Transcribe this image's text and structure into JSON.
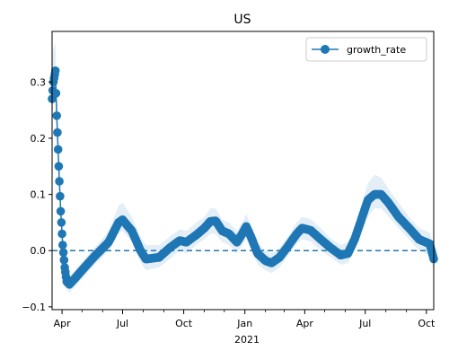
{
  "chart_data": {
    "type": "line",
    "title": "US",
    "xlabel": "",
    "ylabel": "",
    "x_axis_secondary_label": "2021",
    "xlim": [
      "2020-03-17",
      "2021-10-12"
    ],
    "ylim": [
      -0.105,
      0.39
    ],
    "legend": {
      "placement": "top-right",
      "entries": [
        "growth_rate"
      ]
    },
    "grid": false,
    "reference_line": {
      "y": 0.0,
      "style": "dashed"
    },
    "y_ticks": [
      {
        "value": -0.1,
        "label": "−0.1"
      },
      {
        "value": 0.0,
        "label": "0.0"
      },
      {
        "value": 0.1,
        "label": "0.1"
      },
      {
        "value": 0.2,
        "label": "0.2"
      },
      {
        "value": 0.3,
        "label": "0.3"
      }
    ],
    "x_ticks_major": [
      {
        "date": "2020-04-01",
        "label": "Apr"
      },
      {
        "date": "2020-07-01",
        "label": "Jul"
      },
      {
        "date": "2020-10-01",
        "label": "Oct"
      },
      {
        "date": "2021-01-01",
        "label": "Jan"
      },
      {
        "date": "2021-04-01",
        "label": "Apr"
      },
      {
        "date": "2021-07-01",
        "label": "Jul"
      },
      {
        "date": "2021-10-01",
        "label": "Oct"
      }
    ],
    "x_ticks_minor": [
      "2020-05-01",
      "2020-06-01",
      "2020-08-01",
      "2020-09-01",
      "2020-11-01",
      "2020-12-01",
      "2021-02-01",
      "2021-03-01",
      "2021-05-01",
      "2021-06-01",
      "2021-08-01",
      "2021-09-01"
    ],
    "series": [
      {
        "name": "growth_rate",
        "color": "#1f77b4",
        "band_color": "#1f77b4",
        "marker": "circle",
        "keypoints": [
          {
            "x": "2020-03-17",
            "y": 0.27,
            "lo": 0.23,
            "hi": 0.34
          },
          {
            "x": "2020-03-19",
            "y": 0.3,
            "lo": 0.26,
            "hi": 0.36
          },
          {
            "x": "2020-03-22",
            "y": 0.32,
            "lo": 0.28,
            "hi": 0.37
          },
          {
            "x": "2020-03-24",
            "y": 0.24,
            "lo": 0.21,
            "hi": 0.28
          },
          {
            "x": "2020-03-27",
            "y": 0.15,
            "lo": 0.12,
            "hi": 0.18
          },
          {
            "x": "2020-03-30",
            "y": 0.07,
            "lo": 0.05,
            "hi": 0.09
          },
          {
            "x": "2020-04-02",
            "y": 0.01,
            "lo": -0.01,
            "hi": 0.03
          },
          {
            "x": "2020-04-05",
            "y": -0.03,
            "lo": -0.05,
            "hi": -0.01
          },
          {
            "x": "2020-04-08",
            "y": -0.055,
            "lo": -0.07,
            "hi": -0.04
          },
          {
            "x": "2020-04-12",
            "y": -0.06,
            "lo": -0.075,
            "hi": -0.045
          },
          {
            "x": "2020-04-20",
            "y": -0.05,
            "lo": -0.065,
            "hi": -0.035
          },
          {
            "x": "2020-05-01",
            "y": -0.035,
            "lo": -0.05,
            "hi": -0.02
          },
          {
            "x": "2020-05-20",
            "y": -0.01,
            "lo": -0.025,
            "hi": 0.005
          },
          {
            "x": "2020-06-10",
            "y": 0.015,
            "lo": 0.0,
            "hi": 0.035
          },
          {
            "x": "2020-06-25",
            "y": 0.05,
            "lo": 0.03,
            "hi": 0.08
          },
          {
            "x": "2020-07-01",
            "y": 0.055,
            "lo": 0.035,
            "hi": 0.085
          },
          {
            "x": "2020-07-15",
            "y": 0.035,
            "lo": 0.015,
            "hi": 0.06
          },
          {
            "x": "2020-07-28",
            "y": 0.0,
            "lo": -0.02,
            "hi": 0.025
          },
          {
            "x": "2020-08-05",
            "y": -0.015,
            "lo": -0.035,
            "hi": 0.01
          },
          {
            "x": "2020-08-25",
            "y": -0.012,
            "lo": -0.03,
            "hi": 0.01
          },
          {
            "x": "2020-09-10",
            "y": 0.005,
            "lo": -0.015,
            "hi": 0.025
          },
          {
            "x": "2020-09-25",
            "y": 0.018,
            "lo": 0.0,
            "hi": 0.038
          },
          {
            "x": "2020-10-05",
            "y": 0.015,
            "lo": -0.005,
            "hi": 0.035
          },
          {
            "x": "2020-10-20",
            "y": 0.028,
            "lo": 0.01,
            "hi": 0.05
          },
          {
            "x": "2020-11-01",
            "y": 0.04,
            "lo": 0.02,
            "hi": 0.06
          },
          {
            "x": "2020-11-10",
            "y": 0.052,
            "lo": 0.03,
            "hi": 0.075
          },
          {
            "x": "2020-11-18",
            "y": 0.053,
            "lo": 0.03,
            "hi": 0.075
          },
          {
            "x": "2020-11-28",
            "y": 0.035,
            "lo": 0.015,
            "hi": 0.055
          },
          {
            "x": "2020-12-08",
            "y": 0.03,
            "lo": 0.01,
            "hi": 0.05
          },
          {
            "x": "2020-12-20",
            "y": 0.015,
            "lo": -0.005,
            "hi": 0.035
          },
          {
            "x": "2020-12-28",
            "y": 0.03,
            "lo": 0.01,
            "hi": 0.05
          },
          {
            "x": "2021-01-03",
            "y": 0.043,
            "lo": 0.02,
            "hi": 0.065
          },
          {
            "x": "2021-01-10",
            "y": 0.025,
            "lo": 0.005,
            "hi": 0.045
          },
          {
            "x": "2021-01-20",
            "y": -0.005,
            "lo": -0.025,
            "hi": 0.015
          },
          {
            "x": "2021-02-01",
            "y": -0.018,
            "lo": -0.035,
            "hi": 0.0
          },
          {
            "x": "2021-02-10",
            "y": -0.022,
            "lo": -0.04,
            "hi": -0.005
          },
          {
            "x": "2021-02-22",
            "y": -0.012,
            "lo": -0.03,
            "hi": 0.005
          },
          {
            "x": "2021-03-05",
            "y": 0.005,
            "lo": -0.012,
            "hi": 0.022
          },
          {
            "x": "2021-03-20",
            "y": 0.03,
            "lo": 0.012,
            "hi": 0.05
          },
          {
            "x": "2021-03-28",
            "y": 0.04,
            "lo": 0.02,
            "hi": 0.06
          },
          {
            "x": "2021-04-10",
            "y": 0.036,
            "lo": 0.016,
            "hi": 0.056
          },
          {
            "x": "2021-04-25",
            "y": 0.02,
            "lo": 0.0,
            "hi": 0.04
          },
          {
            "x": "2021-05-10",
            "y": 0.005,
            "lo": -0.012,
            "hi": 0.022
          },
          {
            "x": "2021-05-25",
            "y": -0.008,
            "lo": -0.025,
            "hi": 0.01
          },
          {
            "x": "2021-06-05",
            "y": -0.005,
            "lo": -0.022,
            "hi": 0.015
          },
          {
            "x": "2021-06-15",
            "y": 0.02,
            "lo": 0.0,
            "hi": 0.04
          },
          {
            "x": "2021-06-25",
            "y": 0.055,
            "lo": 0.03,
            "hi": 0.08
          },
          {
            "x": "2021-07-05",
            "y": 0.09,
            "lo": 0.06,
            "hi": 0.12
          },
          {
            "x": "2021-07-15",
            "y": 0.1,
            "lo": 0.075,
            "hi": 0.135
          },
          {
            "x": "2021-07-25",
            "y": 0.1,
            "lo": 0.075,
            "hi": 0.13
          },
          {
            "x": "2021-08-05",
            "y": 0.085,
            "lo": 0.06,
            "hi": 0.11
          },
          {
            "x": "2021-08-20",
            "y": 0.06,
            "lo": 0.04,
            "hi": 0.085
          },
          {
            "x": "2021-09-05",
            "y": 0.04,
            "lo": 0.02,
            "hi": 0.06
          },
          {
            "x": "2021-09-20",
            "y": 0.02,
            "lo": 0.0,
            "hi": 0.04
          },
          {
            "x": "2021-09-30",
            "y": 0.015,
            "lo": -0.005,
            "hi": 0.035
          },
          {
            "x": "2021-10-06",
            "y": 0.012,
            "lo": -0.008,
            "hi": 0.032
          },
          {
            "x": "2021-10-12",
            "y": -0.015,
            "lo": -0.035,
            "hi": 0.005
          }
        ]
      }
    ]
  }
}
